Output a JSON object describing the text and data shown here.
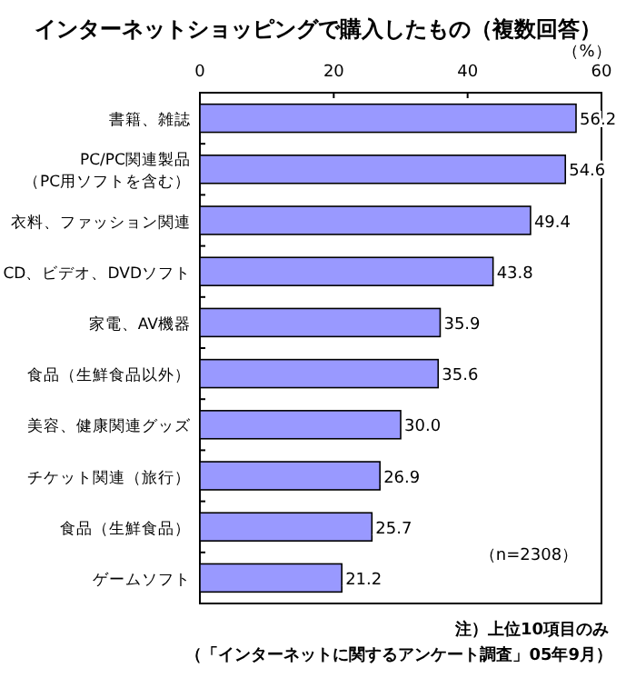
{
  "chart_data": {
    "type": "bar",
    "orientation": "horizontal",
    "title": "インターネットショッピングで購入したもの（複数回答）",
    "xlabel": "（%）",
    "categories": [
      "書籍、雑誌",
      "PC/PC関連製品（PC用ソフトを含む）",
      "衣料、ファッション関連",
      "CD、ビデオ、DVDソフト",
      "家電、AV機器",
      "食品（生鮮食品以外）",
      "美容、健康関連グッズ",
      "チケット関連（旅行）",
      "食品（生鮮食品）",
      "ゲームソフト"
    ],
    "values": [
      56.2,
      54.6,
      49.4,
      43.8,
      35.9,
      35.6,
      30.0,
      26.9,
      25.7,
      21.2
    ],
    "value_labels": [
      "56.2",
      "54.6",
      "49.4",
      "43.8",
      "35.9",
      "35.6",
      "30.0",
      "26.9",
      "25.7",
      "21.2"
    ],
    "color": "#9999ff",
    "xlim": [
      0,
      60
    ],
    "xticks": [
      0,
      20,
      40,
      60
    ],
    "grid": false,
    "annotations": [
      "（n=2308）",
      "注）上位10項目のみ",
      "（「インターネットに関するアンケート調査」05年9月）"
    ]
  }
}
